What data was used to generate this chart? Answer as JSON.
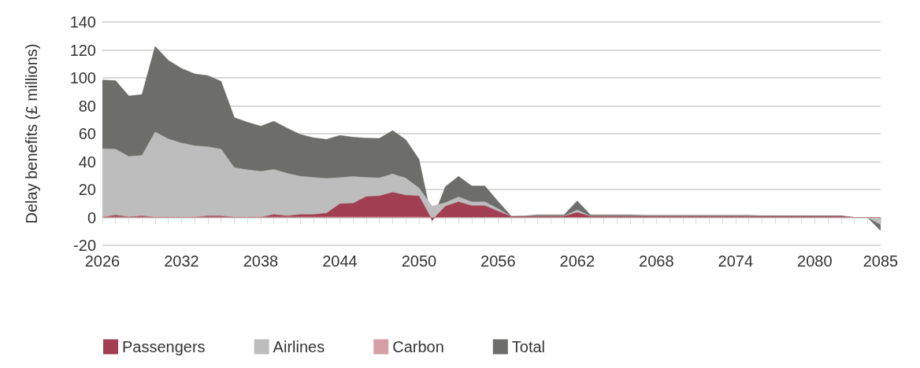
{
  "chart_data": {
    "type": "area",
    "ylabel": "Delay benefits (£ millions)",
    "categories": [
      "2026",
      null,
      null,
      null,
      null,
      null,
      "2032",
      null,
      null,
      null,
      null,
      null,
      "2038",
      null,
      null,
      null,
      null,
      null,
      "2044",
      null,
      null,
      null,
      null,
      null,
      "2050",
      null,
      null,
      null,
      null,
      null,
      "2056",
      null,
      null,
      null,
      null,
      null,
      "2062",
      null,
      null,
      null,
      null,
      null,
      "2068",
      null,
      null,
      null,
      null,
      null,
      "2074",
      null,
      null,
      null,
      null,
      null,
      "2080",
      null,
      null,
      null,
      null,
      "2085"
    ],
    "series": [
      {
        "name": "Passengers",
        "color": "#a23e52",
        "values": [
          0,
          1.5,
          0.3,
          1,
          0,
          0,
          0,
          0,
          1,
          1,
          0,
          0,
          0,
          2,
          1,
          2,
          2,
          3,
          9.7,
          10,
          14.8,
          15.3,
          17.9,
          15.8,
          15.3,
          -2,
          7.9,
          11.1,
          8.3,
          8.3,
          4.4,
          0.5,
          0.5,
          0.7,
          0.7,
          0.7,
          3.5,
          0.7,
          0.7,
          0.7,
          0.7,
          0.7,
          0.7,
          0.7,
          0.7,
          0.7,
          0.7,
          0.7,
          0.7,
          0.7,
          0.7,
          0.7,
          0.7,
          0.7,
          0.7,
          0.7,
          0.7,
          0,
          0,
          0
        ]
      },
      {
        "name": "Airlines",
        "color": "#bcbdbc",
        "values": [
          49.2,
          48.9,
          43.6,
          44.3,
          61.2,
          56.2,
          53.3,
          51.3,
          50.6,
          48.9,
          35.7,
          34.1,
          32.9,
          34.3,
          31.6,
          29.5,
          28.6,
          27.9,
          28.5,
          29.3,
          28.6,
          28.3,
          31.1,
          28.1,
          21.1,
          8,
          10.5,
          14.6,
          11.1,
          11.1,
          6.2,
          0.5,
          0.5,
          1,
          1,
          1,
          5.3,
          1,
          1,
          1,
          1,
          1,
          1,
          1,
          1,
          1,
          1,
          1,
          1,
          1,
          0.8,
          0.8,
          0.8,
          0.8,
          0.8,
          0.8,
          0.8,
          0,
          0,
          -5
        ]
      },
      {
        "name": "Carbon",
        "color": "#d4a0a5",
        "values": [
          0.3,
          0.3,
          0.3,
          0.3,
          0.3,
          0.3,
          0.3,
          0.3,
          0.3,
          0.3,
          0.3,
          0.3,
          0.3,
          0.3,
          0.3,
          0.3,
          0.3,
          0.3,
          0.3,
          0.3,
          0.3,
          0.3,
          0.3,
          0.3,
          0.3,
          0,
          0,
          0,
          0,
          0,
          0,
          0,
          0,
          0,
          0,
          0,
          0,
          0,
          0,
          0,
          0,
          0,
          0,
          0,
          0,
          0,
          0,
          0,
          0,
          0,
          0,
          0,
          0,
          0,
          0,
          0,
          0,
          0,
          0,
          0
        ]
      },
      {
        "name": "Total",
        "color": "#6d6d6b",
        "values": [
          98.4,
          98,
          87,
          88,
          122.5,
          112.5,
          106.7,
          102.8,
          101.6,
          97.5,
          71.5,
          68.2,
          65.4,
          68.9,
          64,
          59.4,
          57.1,
          55.9,
          58.7,
          57.5,
          56.8,
          56.6,
          62.2,
          55.7,
          41.7,
          -2.6,
          22,
          29.5,
          22.5,
          22.5,
          11.4,
          0.9,
          1,
          1.8,
          1.8,
          1.8,
          11.8,
          1.8,
          1.8,
          1.8,
          1.8,
          1.5,
          1.5,
          1.5,
          1.5,
          1.5,
          1.5,
          1.5,
          1.5,
          1.5,
          1.2,
          1.2,
          1.2,
          1.2,
          1.2,
          1.2,
          1.2,
          0,
          0,
          -9.5
        ]
      }
    ],
    "ylim": [
      -20,
      140
    ],
    "yticks": [
      -20,
      0,
      20,
      40,
      60,
      80,
      100,
      120,
      140
    ],
    "grid": "y",
    "legend": "bottom left",
    "marker": "none"
  }
}
